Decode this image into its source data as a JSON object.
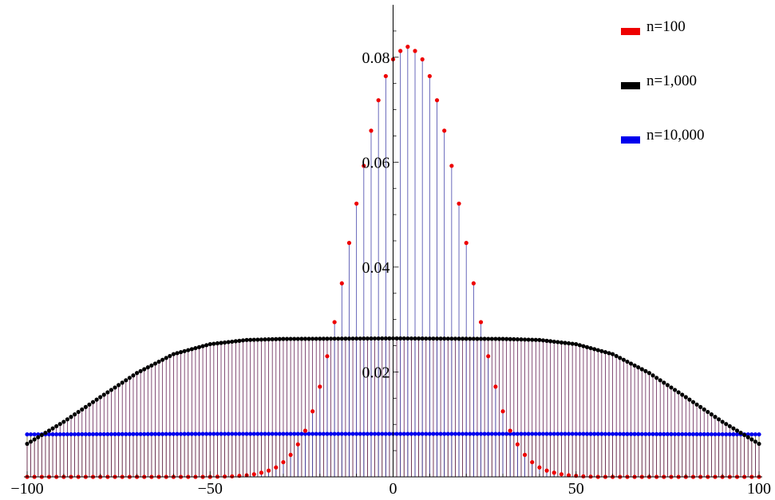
{
  "chart_data": {
    "type": "scatter",
    "title": "",
    "xlabel": "",
    "ylabel": "",
    "xlim": [
      -100,
      100
    ],
    "ylim": [
      0,
      0.09
    ],
    "x_ticks": [
      "-100",
      "-50",
      "0",
      "50",
      "100"
    ],
    "x_tick_values": [
      -100,
      -50,
      0,
      50,
      100
    ],
    "y_ticks": [
      "0.02",
      "0.04",
      "0.06",
      "0.08"
    ],
    "y_tick_values": [
      0.02,
      0.04,
      0.06,
      0.08
    ],
    "legend_position": "top-right",
    "series": [
      {
        "name": "n=100",
        "color": "#ee0000",
        "stem_color": "#4444aa",
        "x_step": 2,
        "points": [
          [
            -100,
            0
          ],
          [
            -50,
            0
          ],
          [
            -44,
            0.0001
          ],
          [
            -40,
            0.0003
          ],
          [
            -38,
            0.0005
          ],
          [
            -36,
            0.0008
          ],
          [
            -34,
            0.0012
          ],
          [
            -32,
            0.0018
          ],
          [
            -30,
            0.0028
          ],
          [
            -28,
            0.0042
          ],
          [
            -26,
            0.0062
          ],
          [
            -24,
            0.0088
          ],
          [
            -22,
            0.0125
          ],
          [
            -20,
            0.0172
          ],
          [
            -18,
            0.023
          ],
          [
            -16,
            0.0295
          ],
          [
            -14,
            0.0369
          ],
          [
            -12,
            0.0446
          ],
          [
            -10,
            0.0521
          ],
          [
            -8,
            0.0593
          ],
          [
            -6,
            0.066
          ],
          [
            -4,
            0.0718
          ],
          [
            -2,
            0.0764
          ],
          [
            0,
            0.0796
          ],
          [
            2,
            0.0812
          ],
          [
            4,
            0.082
          ],
          [
            6,
            0.0812
          ],
          [
            8,
            0.0796
          ],
          [
            10,
            0.0764
          ],
          [
            12,
            0.0718
          ],
          [
            14,
            0.066
          ],
          [
            16,
            0.0593
          ],
          [
            18,
            0.0521
          ],
          [
            20,
            0.0446
          ],
          [
            22,
            0.0369
          ],
          [
            24,
            0.0295
          ],
          [
            26,
            0.023
          ],
          [
            28,
            0.0172
          ],
          [
            30,
            0.0125
          ],
          [
            32,
            0.0088
          ],
          [
            34,
            0.0062
          ],
          [
            36,
            0.0042
          ],
          [
            38,
            0.0028
          ],
          [
            40,
            0.0018
          ],
          [
            42,
            0.0012
          ],
          [
            44,
            0.0008
          ],
          [
            46,
            0.0005
          ],
          [
            48,
            0.0003
          ],
          [
            52,
            0.0001
          ],
          [
            56,
            0
          ],
          [
            100,
            0
          ]
        ]
      },
      {
        "name": "n=1,000",
        "color": "#000000",
        "stem_color": "#662255",
        "x_step": 1,
        "points": [
          [
            -100,
            0.0063
          ],
          [
            -90,
            0.0105
          ],
          [
            -80,
            0.0152
          ],
          [
            -70,
            0.0198
          ],
          [
            -60,
            0.0234
          ],
          [
            -50,
            0.0253
          ],
          [
            -40,
            0.0261
          ],
          [
            -30,
            0.0263
          ],
          [
            0,
            0.0264
          ],
          [
            30,
            0.0263
          ],
          [
            40,
            0.0261
          ],
          [
            50,
            0.0253
          ],
          [
            60,
            0.0234
          ],
          [
            70,
            0.0198
          ],
          [
            80,
            0.0152
          ],
          [
            90,
            0.0105
          ],
          [
            100,
            0.0063
          ]
        ]
      },
      {
        "name": "n=10,000",
        "color": "#0000ee",
        "stem_color": "#776622",
        "x_step": 1,
        "points": [
          [
            -100,
            0.0081
          ],
          [
            -50,
            0.0082
          ],
          [
            0,
            0.0082
          ],
          [
            50,
            0.0082
          ],
          [
            100,
            0.0081
          ]
        ]
      }
    ]
  }
}
